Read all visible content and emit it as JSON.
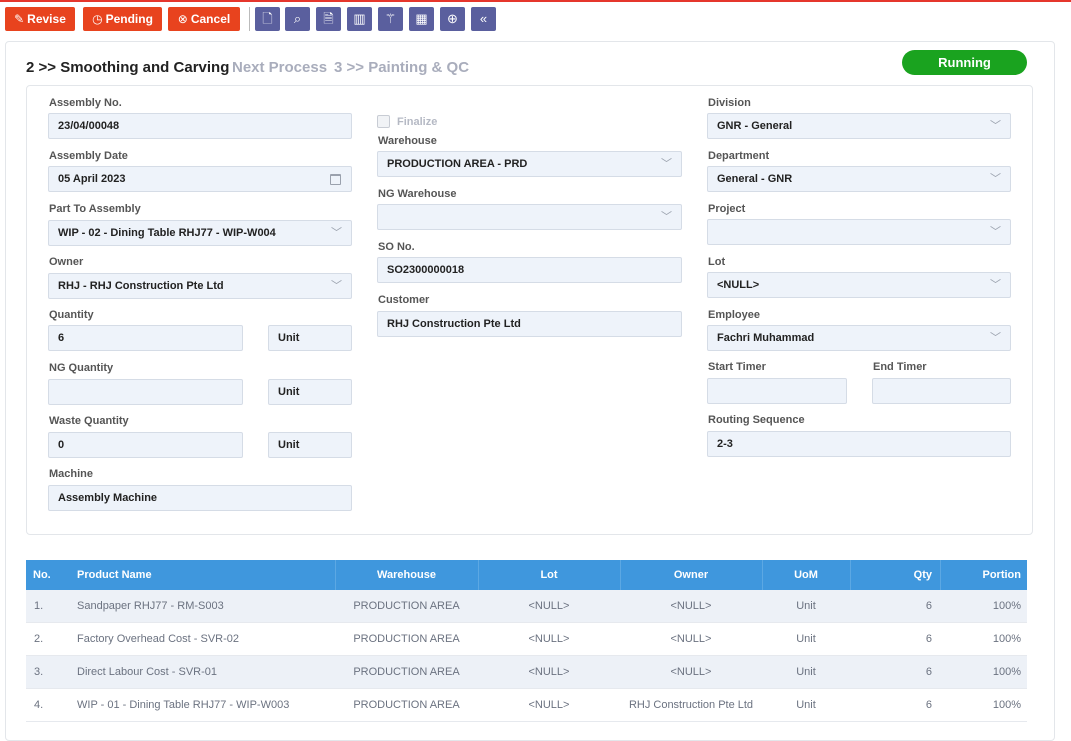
{
  "toolbar": {
    "revise": "Revise",
    "pending": "Pending",
    "cancel": "Cancel",
    "icons": [
      "new-document-icon",
      "search-icon",
      "find-document-icon",
      "barcode-icon",
      "magic-wand-icon",
      "barcode-scan-icon",
      "add-circle-icon",
      "collapse-left-icon"
    ]
  },
  "breadcrumb": {
    "current": "2 >> Smoothing and Carving",
    "next_label": "Next Process",
    "next": "3 >> Painting & QC"
  },
  "status": "Running",
  "form": {
    "assembly_no": {
      "label": "Assembly No.",
      "value": "23/04/00048"
    },
    "assembly_date": {
      "label": "Assembly Date",
      "value": "05 April 2023"
    },
    "part_to_assembly": {
      "label": "Part To Assembly",
      "value": "WIP - 02 - Dining Table RHJ77 - WIP-W004"
    },
    "owner": {
      "label": "Owner",
      "value": "RHJ - RHJ Construction Pte Ltd"
    },
    "quantity": {
      "label": "Quantity",
      "value": "6",
      "unit": "Unit"
    },
    "ng_quantity": {
      "label": "NG Quantity",
      "value": "",
      "unit": "Unit"
    },
    "waste_quantity": {
      "label": "Waste Quantity",
      "value": "0",
      "unit": "Unit"
    },
    "machine": {
      "label": "Machine",
      "value": "Assembly Machine"
    },
    "finalize": {
      "label": "Finalize"
    },
    "warehouse": {
      "label": "Warehouse",
      "value": "PRODUCTION AREA - PRD"
    },
    "ng_warehouse": {
      "label": "NG Warehouse",
      "value": ""
    },
    "so_no": {
      "label": "SO No.",
      "value": "SO2300000018"
    },
    "customer": {
      "label": "Customer",
      "value": "RHJ Construction Pte Ltd"
    },
    "division": {
      "label": "Division",
      "value": "GNR - General"
    },
    "department": {
      "label": "Department",
      "value": "General - GNR"
    },
    "project": {
      "label": "Project",
      "value": ""
    },
    "lot": {
      "label": "Lot",
      "value": "<NULL>"
    },
    "employee": {
      "label": "Employee",
      "value": "Fachri Muhammad"
    },
    "start_timer": {
      "label": "Start Timer",
      "value": ""
    },
    "end_timer": {
      "label": "End Timer",
      "value": ""
    },
    "routing_sequence": {
      "label": "Routing Sequence",
      "value": "2-3"
    }
  },
  "table": {
    "headers": {
      "no": "No.",
      "product": "Product Name",
      "warehouse": "Warehouse",
      "lot": "Lot",
      "owner": "Owner",
      "uom": "UoM",
      "qty": "Qty",
      "portion": "Portion"
    },
    "rows": [
      {
        "no": "1.",
        "product": "Sandpaper RHJ77 - RM-S003",
        "warehouse": "PRODUCTION AREA",
        "lot": "<NULL>",
        "owner": "<NULL>",
        "uom": "Unit",
        "qty": "6",
        "portion": "100%"
      },
      {
        "no": "2.",
        "product": "Factory Overhead Cost - SVR-02",
        "warehouse": "PRODUCTION AREA",
        "lot": "<NULL>",
        "owner": "<NULL>",
        "uom": "Unit",
        "qty": "6",
        "portion": "100%"
      },
      {
        "no": "3.",
        "product": "Direct Labour Cost - SVR-01",
        "warehouse": "PRODUCTION AREA",
        "lot": "<NULL>",
        "owner": "<NULL>",
        "uom": "Unit",
        "qty": "6",
        "portion": "100%"
      },
      {
        "no": "4.",
        "product": "WIP - 01 - Dining Table RHJ77 - WIP-W003",
        "warehouse": "PRODUCTION AREA",
        "lot": "<NULL>",
        "owner": "RHJ Construction Pte Ltd",
        "uom": "Unit",
        "qty": "6",
        "portion": "100%"
      }
    ]
  },
  "colors": {
    "action": "#e8431e",
    "icon_button": "#5a5f9e",
    "status": "#1aa31f",
    "table_header": "#3f97dd",
    "top_line": "#e5362c"
  }
}
